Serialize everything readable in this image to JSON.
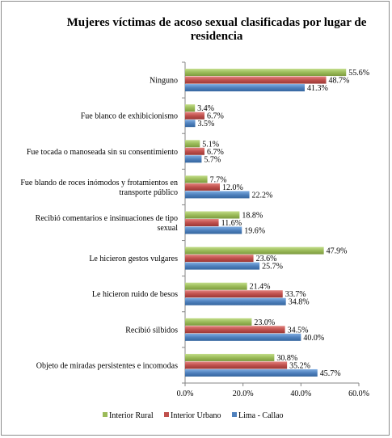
{
  "chart_data": {
    "type": "bar",
    "orientation": "horizontal",
    "title": "Mujeres víctimas de acoso sexual clasificadas por lugar de residencia",
    "title_lines": [
      "Mujeres víctimas de acoso sexual clasificadas por lugar de",
      "residencia"
    ],
    "categories": [
      "Ninguno",
      "Fue blanco de exhibicionismo",
      "Fue tocada o manoseada sin su consentimiento",
      "Fue blando de roces inómodos y frotamientos en transporte público",
      "Recibió comentarios e insinuaciones de tipo sexual",
      "Le hicieron gestos vulgares",
      "Le hicieron ruido de besos",
      "Recibió silbidos",
      "Objeto de miradas persistentes e incomodas"
    ],
    "category_lines": [
      [
        "Ninguno"
      ],
      [
        "Fue blanco de exhibicionismo"
      ],
      [
        "Fue tocada o manoseada sin su consentimiento"
      ],
      [
        "Fue blando de roces inómodos y frotamientos en",
        "transporte público"
      ],
      [
        "Recibió comentarios e insinuaciones de tipo",
        "sexual"
      ],
      [
        "Le hicieron gestos vulgares"
      ],
      [
        "Le hicieron ruido de besos"
      ],
      [
        "Recibió silbidos"
      ],
      [
        "Objeto de miradas persistentes e incomodas"
      ]
    ],
    "series": [
      {
        "name": "Interior Rural",
        "color": "#9bbb59",
        "values": [
          55.6,
          3.4,
          5.1,
          7.7,
          18.8,
          47.9,
          21.4,
          23.0,
          30.8
        ]
      },
      {
        "name": "Interior Urbano",
        "color": "#c0504d",
        "values": [
          48.7,
          6.7,
          6.7,
          12.0,
          11.6,
          23.6,
          33.7,
          34.5,
          35.2
        ]
      },
      {
        "name": "Lima - Callao",
        "color": "#4f81bd",
        "values": [
          41.3,
          3.5,
          5.7,
          22.2,
          19.6,
          25.7,
          34.8,
          40.0,
          45.7
        ]
      }
    ],
    "value_format": "0.0%",
    "x_ticks": [
      "0.0%",
      "20.0%",
      "40.0%",
      "60.0%"
    ],
    "xlim": [
      0,
      60
    ],
    "grid": false,
    "legend_position": "bottom"
  }
}
